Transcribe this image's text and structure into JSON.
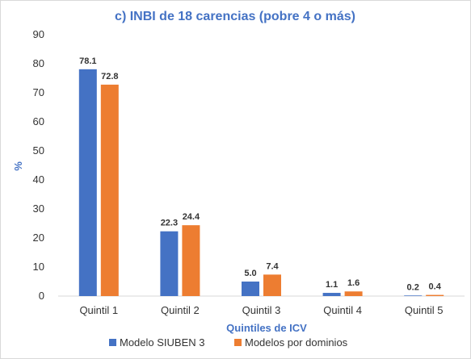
{
  "chart_data": {
    "type": "bar",
    "title": "c) INBI de 18 carencias (pobre 4 o más)",
    "xlabel": "Quintiles de ICV",
    "ylabel": "%",
    "ylim": [
      0,
      90
    ],
    "yticks": [
      0,
      10,
      20,
      30,
      40,
      50,
      60,
      70,
      80,
      90
    ],
    "categories": [
      "Quintil 1",
      "Quintil 2",
      "Quintil 3",
      "Quintil 4",
      "Quintil 5"
    ],
    "series": [
      {
        "name": "Modelo SIUBEN 3",
        "color": "#4472c4",
        "values": [
          78.1,
          22.3,
          5.0,
          1.1,
          0.2
        ],
        "labels": [
          "78.1",
          "22.3",
          "5.0",
          "1.1",
          "0.2"
        ]
      },
      {
        "name": "Modelos por dominios",
        "color": "#ed7d31",
        "values": [
          72.8,
          24.4,
          7.4,
          1.6,
          0.4
        ],
        "labels": [
          "72.8",
          "24.4",
          "7.4",
          "1.6",
          "0.4"
        ]
      }
    ],
    "grid": false,
    "legend_position": "bottom"
  }
}
